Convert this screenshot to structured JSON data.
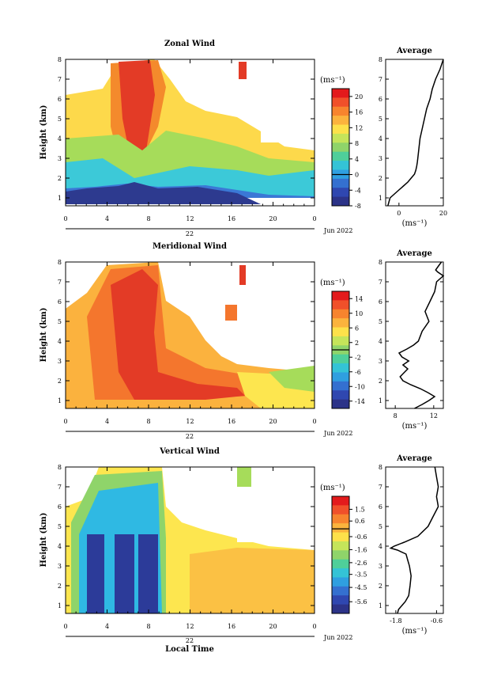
{
  "chart_data": [
    {
      "type": "heatmap",
      "title": "Zonal Wind",
      "ylabel": "Height (km)",
      "xlabel": "",
      "date_label": "Jun 2022",
      "day_label": "22",
      "x_ticks": [
        "0",
        "4",
        "8",
        "12",
        "16",
        "20",
        "0"
      ],
      "y_ticks": [
        "1",
        "2",
        "3",
        "4",
        "5",
        "6",
        "7",
        "8"
      ],
      "xlim": [
        0,
        24
      ],
      "ylim": [
        0.6,
        8
      ],
      "colorbar": {
        "unit": "(ms⁻¹)",
        "min": -8,
        "max": 22,
        "ticks": [
          "20",
          "16",
          "12",
          "8",
          "4",
          "0",
          "-4",
          "-8"
        ],
        "tick_values": [
          20,
          16,
          12,
          8,
          4,
          0,
          -4,
          -8
        ]
      },
      "profile": {
        "title": "Average",
        "unit": "(ms⁻¹)",
        "x_ticks": [
          "0",
          "20"
        ],
        "x_tick_values": [
          0,
          20
        ],
        "xlim": [
          -6,
          20
        ],
        "heights": [
          0.6,
          0.8,
          1.0,
          1.2,
          1.4,
          1.6,
          1.8,
          2.0,
          2.2,
          2.4,
          2.6,
          2.8,
          3.0,
          3.5,
          4.0,
          4.5,
          5.0,
          5.5,
          6.0,
          6.5,
          7.0,
          7.5,
          8.0
        ],
        "values": [
          -5,
          -4.5,
          -4,
          -2,
          0,
          2,
          4,
          5.5,
          7,
          7.6,
          8,
          8.3,
          8.5,
          9,
          9.5,
          10.5,
          11.5,
          12.5,
          14,
          15,
          16.5,
          18.5,
          20
        ]
      }
    },
    {
      "type": "heatmap",
      "title": "Meridional Wind",
      "ylabel": "Height (km)",
      "xlabel": "",
      "date_label": "Jun 2022",
      "day_label": "22",
      "x_ticks": [
        "0",
        "4",
        "8",
        "12",
        "16",
        "20",
        "0"
      ],
      "y_ticks": [
        "1",
        "2",
        "3",
        "4",
        "5",
        "6",
        "7",
        "8"
      ],
      "xlim": [
        0,
        24
      ],
      "ylim": [
        0.6,
        8
      ],
      "colorbar": {
        "unit": "(ms⁻¹)",
        "min": -16,
        "max": 16,
        "ticks": [
          "14",
          "10",
          "6",
          "2",
          "-2",
          "-6",
          "-10",
          "-14"
        ],
        "tick_values": [
          14,
          10,
          6,
          2,
          -2,
          -6,
          -10,
          -14
        ]
      },
      "profile": {
        "title": "Average",
        "unit": "(ms⁻¹)",
        "x_ticks": [
          "8",
          "12"
        ],
        "x_tick_values": [
          8,
          12
        ],
        "xlim": [
          7,
          13
        ],
        "heights": [
          0.6,
          0.8,
          1.0,
          1.2,
          1.4,
          1.6,
          1.8,
          2.0,
          2.2,
          2.4,
          2.6,
          2.8,
          3.0,
          3.2,
          3.4,
          3.6,
          3.8,
          4.0,
          4.5,
          5.0,
          5.5,
          6.0,
          6.5,
          7.0,
          7.3,
          7.5,
          7.6,
          7.8,
          8.0
        ],
        "values": [
          10,
          10.8,
          11.5,
          12.1,
          11.4,
          10.6,
          9.6,
          8.8,
          8.5,
          8.9,
          9.3,
          8.8,
          9.4,
          8.7,
          8.4,
          9.2,
          9.9,
          10.4,
          10.8,
          11.5,
          11.1,
          11.6,
          12.1,
          12.3,
          13.0,
          12.4,
          12.2,
          12.5,
          12.8
        ]
      }
    },
    {
      "type": "heatmap",
      "title": "Vertical Wind",
      "ylabel": "Height (km)",
      "xlabel": "Local Time",
      "date_label": "Jun 2022",
      "day_label": "22",
      "x_ticks": [
        "0",
        "4",
        "8",
        "12",
        "16",
        "20",
        "0"
      ],
      "y_ticks": [
        "1",
        "2",
        "3",
        "4",
        "5",
        "6",
        "7",
        "8"
      ],
      "xlim": [
        0,
        24
      ],
      "ylim": [
        0.6,
        8
      ],
      "colorbar": {
        "unit": "(ms⁻¹)",
        "min": -6.5,
        "max": 2.5,
        "ticks": [
          "1.5",
          "0.6",
          "-0.6",
          "-1.6",
          "-2.6",
          "-3.5",
          "-4.5",
          "-5.6"
        ],
        "tick_values": [
          1.5,
          0.6,
          -0.6,
          -1.6,
          -2.6,
          -3.5,
          -4.5,
          -5.6
        ]
      },
      "profile": {
        "title": "Average",
        "unit": "(ms⁻¹)",
        "x_ticks": [
          "-1.8",
          "-0.6"
        ],
        "x_tick_values": [
          -1.8,
          -0.6
        ],
        "xlim": [
          -2.1,
          -0.4
        ],
        "heights": [
          0.6,
          0.8,
          1.0,
          1.2,
          1.5,
          2.0,
          2.5,
          3.0,
          3.3,
          3.6,
          3.8,
          3.9,
          4.0,
          4.2,
          4.5,
          5.0,
          5.5,
          6.0,
          6.5,
          7.0,
          7.5,
          8.0
        ],
        "values": [
          -1.75,
          -1.72,
          -1.62,
          -1.52,
          -1.42,
          -1.38,
          -1.35,
          -1.4,
          -1.45,
          -1.5,
          -1.75,
          -1.95,
          -1.85,
          -1.55,
          -1.15,
          -0.85,
          -0.7,
          -0.55,
          -0.6,
          -0.55,
          -0.6,
          -0.65
        ]
      }
    }
  ]
}
